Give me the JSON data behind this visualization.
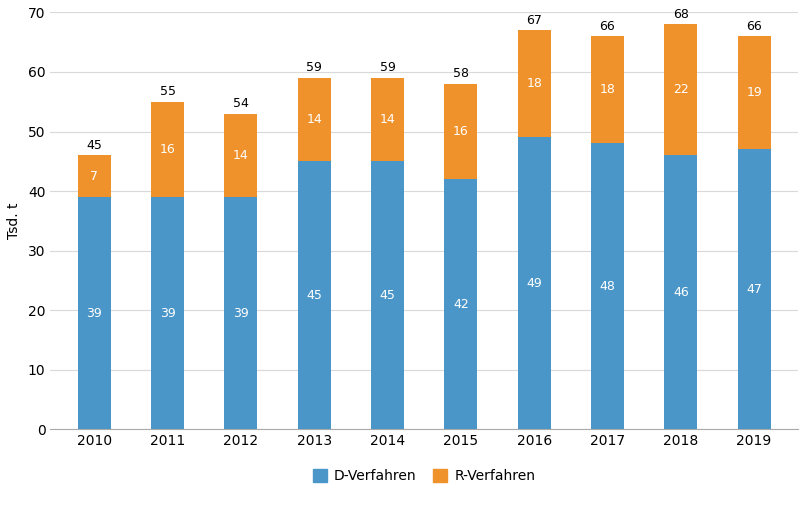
{
  "years": [
    2010,
    2011,
    2012,
    2013,
    2014,
    2015,
    2016,
    2017,
    2018,
    2019
  ],
  "d_verfahren": [
    39,
    39,
    39,
    45,
    45,
    42,
    49,
    48,
    46,
    47
  ],
  "r_verfahren": [
    7,
    16,
    14,
    14,
    14,
    16,
    18,
    18,
    22,
    19
  ],
  "totals": [
    45,
    55,
    54,
    59,
    59,
    58,
    67,
    66,
    68,
    66
  ],
  "d_color": "#4b96c8",
  "r_color": "#f0922b",
  "ylabel": "Tsd. t",
  "ylim": [
    0,
    70
  ],
  "yticks": [
    0,
    10,
    20,
    30,
    40,
    50,
    60,
    70
  ],
  "legend_d": "D-Verfahren",
  "legend_r": "R-Verfahren",
  "background_color": "#ffffff",
  "grid_color": "#d9d9d9",
  "bar_width": 0.45,
  "label_fontsize": 9,
  "tick_fontsize": 10
}
